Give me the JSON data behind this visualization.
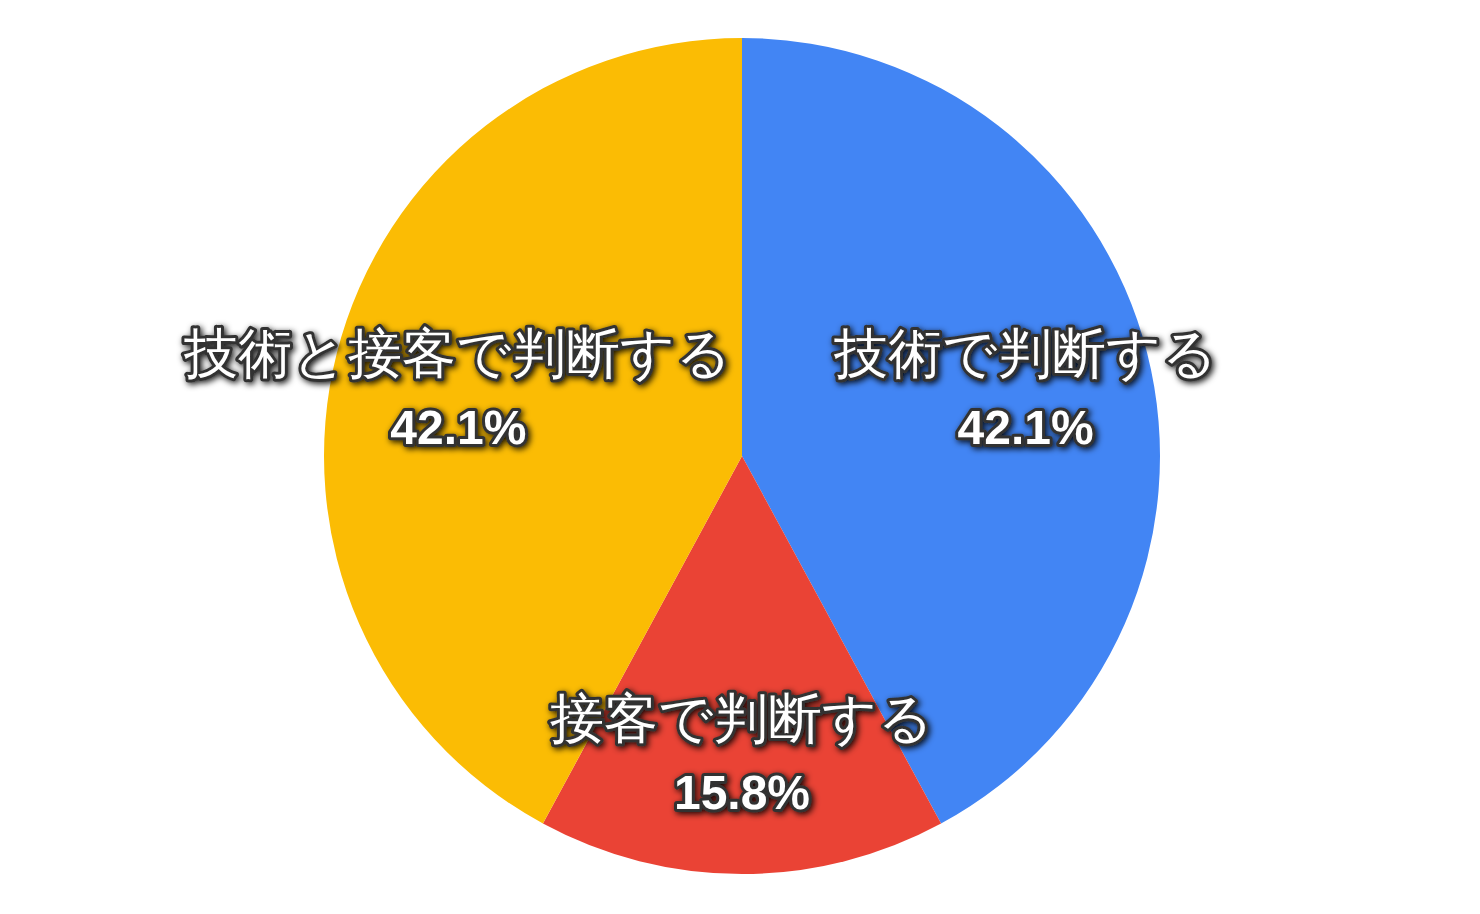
{
  "chart_data": {
    "type": "pie",
    "categories": [
      "技術で判断する",
      "接客で判断する",
      "技術と接客で判断する"
    ],
    "values": [
      42.1,
      15.8,
      42.1
    ],
    "colors": [
      "#4285f4",
      "#ea4335",
      "#fbbc04"
    ],
    "value_labels": [
      "42.1%",
      "15.8%",
      "42.1%"
    ]
  }
}
